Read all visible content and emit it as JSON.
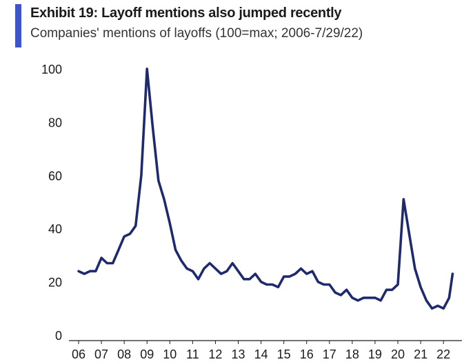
{
  "header": {
    "title": "Exhibit 19: Layoff mentions also jumped recently",
    "subtitle": "Companies' mentions of layoffs (100=max; 2006-7/29/22)"
  },
  "colors": {
    "accent": "#3d55c8",
    "line": "#1f2a6e",
    "axis": "#1a1a1a"
  },
  "chart_data": {
    "type": "line",
    "title": "Exhibit 19: Layoff mentions also jumped recently",
    "subtitle": "Companies' mentions of layoffs (100=max; 2006-7/29/22)",
    "xlabel": "",
    "ylabel": "",
    "xlim": [
      2006,
      2022.6
    ],
    "ylim": [
      0,
      100
    ],
    "yticks": [
      0,
      20,
      40,
      60,
      80,
      100
    ],
    "xticks": [
      {
        "label": "06",
        "value": 2006
      },
      {
        "label": "07",
        "value": 2007
      },
      {
        "label": "08",
        "value": 2008
      },
      {
        "label": "09",
        "value": 2009
      },
      {
        "label": "10",
        "value": 2010
      },
      {
        "label": "11",
        "value": 2011
      },
      {
        "label": "12",
        "value": 2012
      },
      {
        "label": "13",
        "value": 2013
      },
      {
        "label": "14",
        "value": 2014
      },
      {
        "label": "15",
        "value": 2015
      },
      {
        "label": "16",
        "value": 2016
      },
      {
        "label": "17",
        "value": 2017
      },
      {
        "label": "18",
        "value": 2018
      },
      {
        "label": "19",
        "value": 2019
      },
      {
        "label": "20",
        "value": 2020
      },
      {
        "label": "21",
        "value": 2021
      },
      {
        "label": "22",
        "value": 2022
      }
    ],
    "grid": false,
    "legend": "none",
    "series": [
      {
        "x": [
          2006.0,
          2006.25,
          2006.5,
          2006.75,
          2007.0,
          2007.25,
          2007.5,
          2007.75,
          2008.0,
          2008.25,
          2008.5,
          2008.75,
          2009.0,
          2009.25,
          2009.5,
          2009.75,
          2010.0,
          2010.25,
          2010.5,
          2010.75,
          2011.0,
          2011.25,
          2011.5,
          2011.75,
          2012.0,
          2012.25,
          2012.5,
          2012.75,
          2013.0,
          2013.25,
          2013.5,
          2013.75,
          2014.0,
          2014.25,
          2014.5,
          2014.75,
          2015.0,
          2015.25,
          2015.5,
          2015.75,
          2016.0,
          2016.25,
          2016.5,
          2016.75,
          2017.0,
          2017.25,
          2017.5,
          2017.75,
          2018.0,
          2018.25,
          2018.5,
          2018.75,
          2019.0,
          2019.25,
          2019.5,
          2019.75,
          2020.0,
          2020.25,
          2020.5,
          2020.75,
          2021.0,
          2021.25,
          2021.5,
          2021.75,
          2022.0,
          2022.25,
          2022.4
        ],
        "values": [
          24,
          23,
          24,
          24,
          29,
          27,
          27,
          32,
          37,
          38,
          41,
          60,
          100,
          78,
          58,
          51,
          42,
          32,
          28,
          25,
          24,
          21,
          25,
          27,
          25,
          23,
          24,
          27,
          24,
          21,
          21,
          23,
          20,
          19,
          19,
          18,
          22,
          22,
          23,
          25,
          23,
          24,
          20,
          19,
          19,
          16,
          15,
          17,
          14,
          13,
          14,
          14,
          14,
          13,
          17,
          17,
          19,
          51,
          38,
          25,
          18,
          13,
          10,
          11,
          10,
          14,
          23
        ]
      }
    ]
  }
}
